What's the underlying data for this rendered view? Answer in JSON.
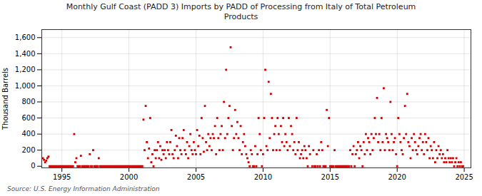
{
  "chart_data": {
    "type": "scatter",
    "title": "Monthly Gulf Coast (PADD 3) Imports by PADD of Processing from Italy of Total Petroleum\nProducts",
    "ylabel": "Thousand Barrels",
    "source": "Source: U.S. Energy Information Administration",
    "color": "#CC0000",
    "marker": "square",
    "grid": true,
    "xlim": [
      1993.5,
      2025.5
    ],
    "ylim": [
      -20,
      1700
    ],
    "xticks": [
      1995,
      2000,
      2005,
      2010,
      2015,
      2020,
      2025
    ],
    "yticks": [
      0,
      200,
      400,
      600,
      800,
      {
        "value": 1000,
        "label": "1,000"
      },
      {
        "value": 1200,
        "label": "1,200"
      },
      {
        "value": 1400,
        "label": "1,400"
      },
      {
        "value": 1600,
        "label": "1,600"
      }
    ],
    "x": [
      1993.583,
      1993.667,
      1993.75,
      1993.833,
      1993.917,
      1994.0,
      1994.083,
      1994.167,
      1994.25,
      1994.333,
      1994.417,
      1994.5,
      1994.583,
      1994.667,
      1994.75,
      1994.833,
      1994.917,
      1995.0,
      1995.083,
      1995.167,
      1995.25,
      1995.333,
      1995.417,
      1995.5,
      1995.583,
      1995.667,
      1995.75,
      1995.833,
      1995.917,
      1996.0,
      1996.083,
      1996.167,
      1996.25,
      1996.333,
      1996.417,
      1996.5,
      1996.583,
      1996.667,
      1996.75,
      1996.833,
      1996.917,
      1997.0,
      1997.083,
      1997.167,
      1997.25,
      1997.333,
      1997.417,
      1997.5,
      1997.583,
      1997.667,
      1997.75,
      1997.833,
      1997.917,
      1998.0,
      1998.083,
      1998.167,
      1998.25,
      1998.333,
      1998.417,
      1998.5,
      1998.583,
      1998.667,
      1998.75,
      1998.833,
      1998.917,
      1999.0,
      1999.083,
      1999.167,
      1999.25,
      1999.333,
      1999.417,
      1999.5,
      1999.583,
      1999.667,
      1999.75,
      1999.833,
      1999.917,
      2000.0,
      2000.083,
      2000.167,
      2000.25,
      2000.333,
      2000.417,
      2000.5,
      2000.583,
      2000.667,
      2000.75,
      2000.833,
      2000.917,
      2001.0,
      2001.083,
      2001.167,
      2001.25,
      2001.333,
      2001.417,
      2001.5,
      2001.583,
      2001.667,
      2001.75,
      2001.833,
      2001.917,
      2002.0,
      2002.083,
      2002.167,
      2002.25,
      2002.333,
      2002.417,
      2002.5,
      2002.583,
      2002.667,
      2002.75,
      2002.833,
      2002.917,
      2003.0,
      2003.083,
      2003.167,
      2003.25,
      2003.333,
      2003.417,
      2003.5,
      2003.583,
      2003.667,
      2003.75,
      2003.833,
      2003.917,
      2004.0,
      2004.083,
      2004.167,
      2004.25,
      2004.333,
      2004.417,
      2004.5,
      2004.583,
      2004.667,
      2004.75,
      2004.833,
      2004.917,
      2005.0,
      2005.083,
      2005.167,
      2005.25,
      2005.333,
      2005.417,
      2005.5,
      2005.583,
      2005.667,
      2005.75,
      2005.833,
      2005.917,
      2006.0,
      2006.083,
      2006.167,
      2006.25,
      2006.333,
      2006.417,
      2006.5,
      2006.583,
      2006.667,
      2006.75,
      2006.833,
      2006.917,
      2007.0,
      2007.083,
      2007.167,
      2007.25,
      2007.333,
      2007.417,
      2007.5,
      2007.583,
      2007.667,
      2007.75,
      2007.833,
      2007.917,
      2008.0,
      2008.083,
      2008.167,
      2008.25,
      2008.333,
      2008.417,
      2008.5,
      2008.583,
      2008.667,
      2008.75,
      2008.833,
      2008.917,
      2009.0,
      2009.083,
      2009.167,
      2009.25,
      2009.333,
      2009.417,
      2009.5,
      2009.583,
      2009.667,
      2009.75,
      2009.833,
      2009.917,
      2010.0,
      2010.083,
      2010.167,
      2010.25,
      2010.333,
      2010.417,
      2010.5,
      2010.583,
      2010.667,
      2010.75,
      2010.833,
      2010.917,
      2011.0,
      2011.083,
      2011.167,
      2011.25,
      2011.333,
      2011.417,
      2011.5,
      2011.583,
      2011.667,
      2011.75,
      2011.833,
      2011.917,
      2012.0,
      2012.083,
      2012.167,
      2012.25,
      2012.333,
      2012.417,
      2012.5,
      2012.583,
      2012.667,
      2012.75,
      2012.833,
      2012.917,
      2013.0,
      2013.083,
      2013.167,
      2013.25,
      2013.333,
      2013.417,
      2013.5,
      2013.667,
      2013.75,
      2013.833,
      2013.917,
      2014.0,
      2014.083,
      2014.167,
      2014.25,
      2014.333,
      2014.417,
      2014.5,
      2014.583,
      2014.667,
      2014.75,
      2014.833,
      2014.917,
      2015.0,
      2015.083,
      2015.167,
      2015.25,
      2015.333,
      2015.417,
      2015.5,
      2015.583,
      2015.667,
      2015.75,
      2015.833,
      2015.917,
      2016.0,
      2016.083,
      2016.167,
      2016.25,
      2016.333,
      2016.417,
      2016.5,
      2016.583,
      2016.667,
      2016.75,
      2016.833,
      2016.917,
      2017.0,
      2017.083,
      2017.167,
      2017.25,
      2017.333,
      2017.417,
      2017.5,
      2017.583,
      2017.667,
      2017.75,
      2017.833,
      2017.917,
      2018.0,
      2018.083,
      2018.167,
      2018.25,
      2018.333,
      2018.417,
      2018.5,
      2018.583,
      2018.667,
      2018.75,
      2018.833,
      2018.917,
      2019.0,
      2019.083,
      2019.167,
      2019.25,
      2019.333,
      2019.417,
      2019.5,
      2019.583,
      2019.667,
      2019.75,
      2019.833,
      2019.917,
      2020.0,
      2020.083,
      2020.167,
      2020.25,
      2020.333,
      2020.417,
      2020.5,
      2020.583,
      2020.667,
      2020.75,
      2020.833,
      2020.917,
      2021.0,
      2021.083,
      2021.167,
      2021.25,
      2021.333,
      2021.417,
      2021.5,
      2021.583,
      2021.667,
      2021.75,
      2021.833,
      2021.917,
      2022.0,
      2022.083,
      2022.167,
      2022.25,
      2022.333,
      2022.417,
      2022.5,
      2022.583,
      2022.667,
      2022.75,
      2022.833,
      2022.917,
      2023.0,
      2023.083,
      2023.167,
      2023.25,
      2023.333,
      2023.417,
      2023.5,
      2023.583,
      2023.667,
      2023.75,
      2023.833,
      2023.917,
      2024.0,
      2024.083,
      2024.167,
      2024.25,
      2024.333,
      2024.417,
      2024.5,
      2024.583,
      2024.667,
      2024.75,
      2024.833,
      2024.917
    ],
    "values": [
      100,
      80,
      50,
      70,
      100,
      120,
      0,
      0,
      0,
      0,
      0,
      0,
      0,
      0,
      0,
      0,
      0,
      0,
      0,
      0,
      0,
      0,
      0,
      0,
      0,
      0,
      0,
      0,
      400,
      50,
      100,
      0,
      0,
      0,
      130,
      0,
      0,
      0,
      0,
      0,
      0,
      0,
      150,
      0,
      0,
      200,
      0,
      0,
      0,
      0,
      100,
      0,
      0,
      0,
      0,
      0,
      0,
      0,
      0,
      0,
      0,
      0,
      0,
      0,
      0,
      0,
      0,
      0,
      0,
      0,
      0,
      0,
      0,
      0,
      0,
      0,
      0,
      0,
      0,
      0,
      0,
      0,
      0,
      0,
      0,
      0,
      0,
      0,
      0,
      0,
      580,
      200,
      750,
      300,
      100,
      220,
      600,
      50,
      150,
      0,
      200,
      100,
      200,
      300,
      100,
      250,
      80,
      200,
      150,
      200,
      100,
      300,
      200,
      150,
      300,
      450,
      150,
      100,
      200,
      380,
      250,
      100,
      350,
      200,
      150,
      350,
      450,
      200,
      150,
      300,
      100,
      250,
      400,
      200,
      150,
      300,
      200,
      150,
      450,
      250,
      380,
      150,
      600,
      350,
      180,
      750,
      300,
      200,
      400,
      250,
      350,
      200,
      400,
      350,
      500,
      150,
      600,
      350,
      200,
      400,
      500,
      200,
      800,
      350,
      1200,
      400,
      600,
      750,
      1480,
      500,
      200,
      350,
      700,
      400,
      550,
      350,
      200,
      500,
      150,
      300,
      400,
      250,
      150,
      100,
      50,
      0,
      200,
      150,
      0,
      0,
      250,
      0,
      150,
      600,
      400,
      200,
      0,
      150,
      600,
      1200,
      250,
      200,
      1050,
      350,
      900,
      600,
      200,
      400,
      500,
      200,
      600,
      400,
      200,
      500,
      300,
      600,
      250,
      400,
      300,
      200,
      600,
      250,
      500,
      400,
      200,
      300,
      150,
      600,
      200,
      300,
      100,
      150,
      200,
      100,
      250,
      200,
      100,
      0,
      250,
      150,
      0,
      200,
      0,
      0,
      150,
      0,
      200,
      0,
      300,
      200,
      0,
      0,
      0,
      700,
      250,
      600,
      0,
      0,
      0,
      0,
      200,
      0,
      0,
      0,
      0,
      0,
      0,
      0,
      0,
      0,
      0,
      0,
      0,
      0,
      200,
      0,
      150,
      250,
      0,
      150,
      200,
      300,
      100,
      250,
      200,
      0,
      300,
      150,
      400,
      200,
      350,
      300,
      150,
      400,
      200,
      350,
      600,
      400,
      850,
      300,
      400,
      200,
      600,
      300,
      970,
      200,
      400,
      350,
      300,
      200,
      800,
      400,
      200,
      300,
      350,
      150,
      0,
      600,
      400,
      300,
      200,
      150,
      350,
      750,
      400,
      900,
      300,
      250,
      100,
      350,
      200,
      400,
      300,
      200,
      150,
      250,
      350,
      400,
      200,
      300,
      150,
      400,
      300,
      200,
      350,
      100,
      250,
      200,
      100,
      300,
      50,
      200,
      100,
      250,
      150,
      200,
      100,
      150,
      50,
      100,
      50,
      200,
      100,
      50,
      100,
      50,
      100,
      0,
      50,
      100,
      0,
      50,
      0,
      50,
      0,
      0
    ]
  }
}
